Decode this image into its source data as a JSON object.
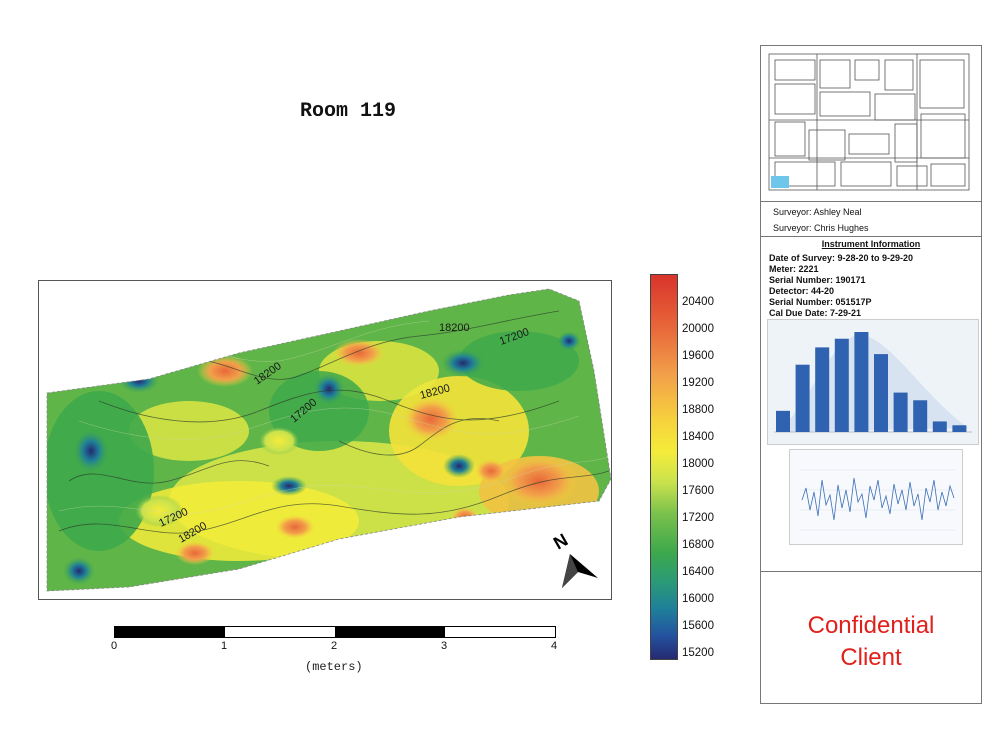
{
  "title": "Room 119",
  "map": {
    "contour_labels": [
      "18200",
      "17200",
      "18200",
      "17200",
      "18200",
      "17200",
      "18200"
    ],
    "scale": {
      "ticks": [
        "0",
        "1",
        "2",
        "3",
        "4"
      ],
      "unit": "(meters)"
    },
    "legend": {
      "values": [
        "20400",
        "20000",
        "19600",
        "19200",
        "18800",
        "18400",
        "18000",
        "17600",
        "17200",
        "16800",
        "16400",
        "16000",
        "15600",
        "15200"
      ],
      "colors": [
        "#d9342b",
        "#f7d23c",
        "#3ea94b",
        "#252a70"
      ]
    },
    "north_label": "N"
  },
  "panel": {
    "surveyors": [
      "Surveyor: Ashley Neal",
      "Surveyor: Chris Hughes"
    ],
    "instrument": {
      "heading": "Instrument Information",
      "lines": [
        "Date of Survey: 9-28-20 to 9-29-20",
        "Meter: 2221",
        "Serial Number: 190171",
        "Detector: 44-20",
        "Serial Number: 051517P",
        "Cal Due Date: 7-29-21"
      ]
    },
    "histogram": {
      "bar_values": [
        22,
        70,
        88,
        97,
        104,
        81,
        41,
        33,
        11,
        7
      ]
    },
    "confidential": [
      "Confidential",
      "Client"
    ]
  }
}
